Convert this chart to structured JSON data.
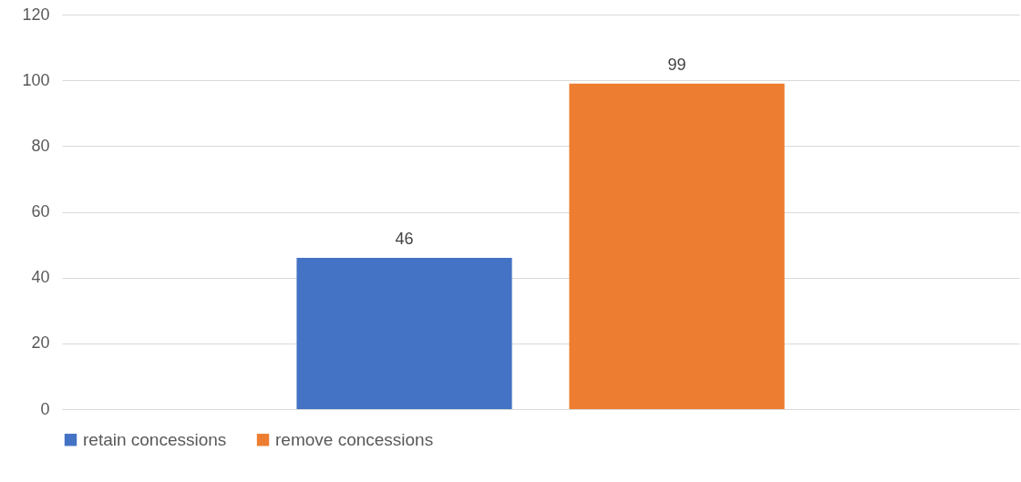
{
  "chart_data": {
    "type": "bar",
    "categories": [
      null
    ],
    "series": [
      {
        "name": "retain concessions",
        "color": "#4472c4",
        "values": [
          46
        ]
      },
      {
        "name": "remove concessions",
        "color": "#ed7d31",
        "values": [
          99
        ]
      }
    ],
    "ylim": [
      0,
      120
    ],
    "yticks": [
      0,
      20,
      40,
      60,
      80,
      100,
      120
    ],
    "grid": "y",
    "legend": "bottom",
    "data_labels": true
  }
}
